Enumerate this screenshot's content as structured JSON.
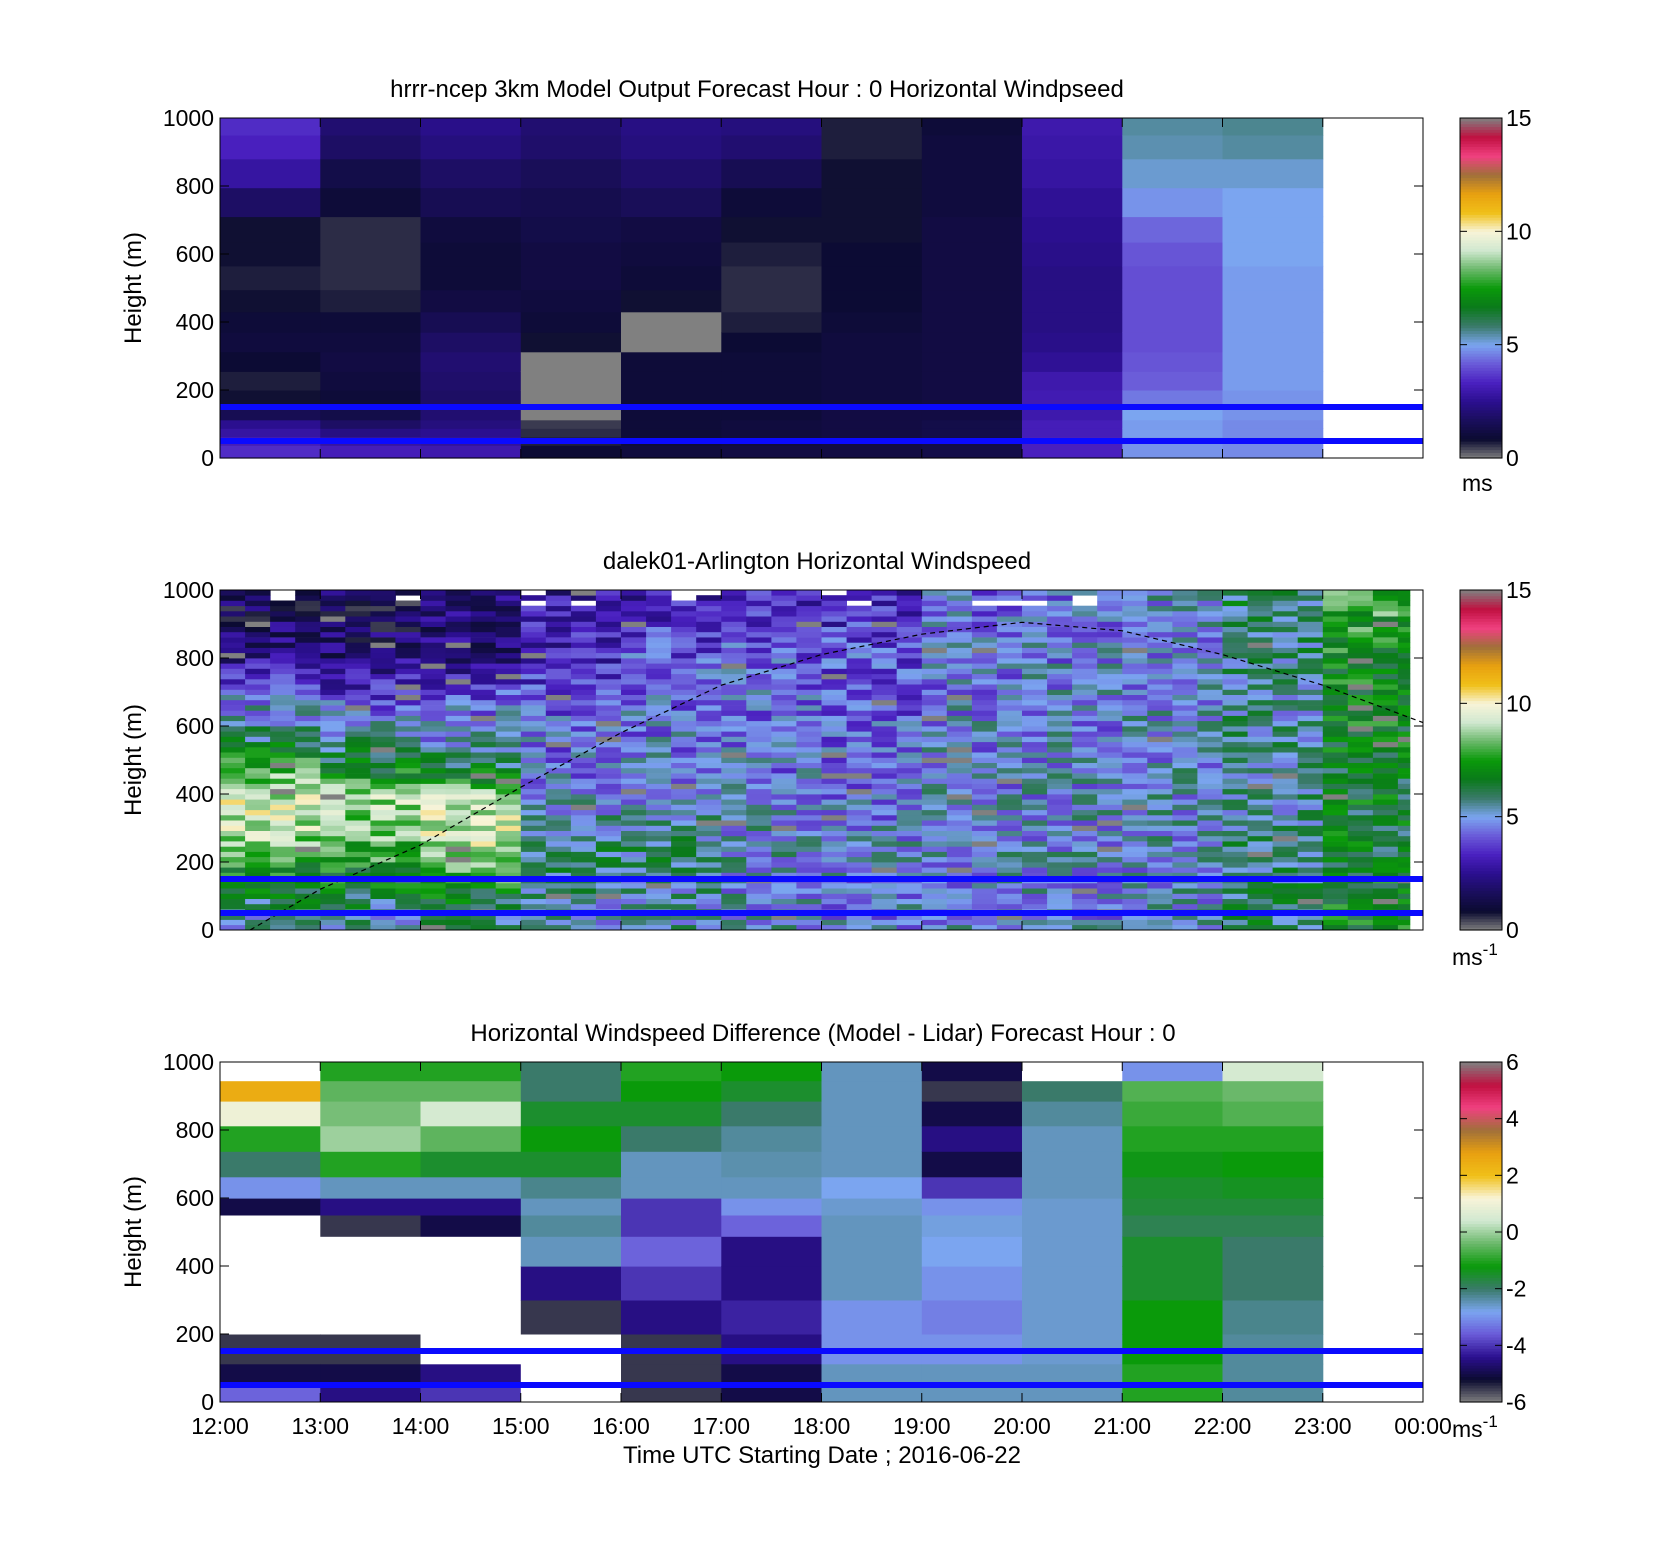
{
  "colormaps": {
    "speed": [
      "#808080",
      "#0b0b30",
      "#1a0e5c",
      "#2b0f8f",
      "#4a20c0",
      "#6a5ad8",
      "#7ba5f0",
      "#3a7a6a",
      "#0a7a1a",
      "#0a9a0a",
      "#6ab86a",
      "#d0e8d0",
      "#f8f4d8",
      "#f0c018",
      "#e8a010",
      "#a0703a",
      "#f04080",
      "#c01040",
      "#808080"
    ],
    "diff": [
      "#808080",
      "#0b0b30",
      "#2b0f8f",
      "#6a5ad8",
      "#7ba5f0",
      "#3a7a6a",
      "#0a9a0a",
      "#6ab86a",
      "#d0e8d0",
      "#f8f4d8",
      "#f0c018",
      "#e8a010",
      "#a0703a",
      "#f04080",
      "#c01040",
      "#808080"
    ]
  },
  "reference_lines": {
    "color": "#0a0aff",
    "heights_m": [
      150,
      50
    ]
  },
  "panels": [
    {
      "id": "model",
      "title": "hrrr-ncep 3km Model Output   Forecast Hour : 0 Horizontal Windpseed",
      "ylabel": "Height (m)",
      "colorbar": {
        "min": 0,
        "max": 15,
        "ticks": [
          "0",
          "5",
          "10",
          "15"
        ],
        "unit": "ms",
        "sup": ""
      }
    },
    {
      "id": "lidar",
      "title": "dalek01-Arlington  Horizontal Windspeed",
      "ylabel": "Height (m)",
      "colorbar": {
        "min": 0,
        "max": 15,
        "ticks": [
          "0",
          "5",
          "10",
          "15"
        ],
        "unit": "ms",
        "sup": "-1"
      }
    },
    {
      "id": "diff",
      "title": "Horizontal Windspeed Difference (Model - Lidar) Forecast Hour : 0",
      "ylabel": "Height (m)",
      "colorbar": {
        "min": -6,
        "max": 6,
        "ticks": [
          "-6",
          "-4",
          "-2",
          "0",
          "2",
          "4",
          "6"
        ],
        "unit": "ms",
        "sup": "-1"
      }
    }
  ],
  "x_axis": {
    "label": "Time UTC  Starting Date ; 2016-06-22",
    "ticks": [
      "12:00",
      "13:00",
      "14:00",
      "15:00",
      "16:00",
      "17:00",
      "18:00",
      "19:00",
      "20:00",
      "21:00",
      "22:00",
      "23:00",
      "00:00"
    ]
  },
  "chart_data": [
    {
      "type": "heatmap",
      "title": "hrrr-ncep 3km Model Output   Forecast Hour : 0 Horizontal Windpseed",
      "xlabel": "",
      "ylabel": "Height (m)",
      "ylim": [
        0,
        1000
      ],
      "x_range_hours_utc": [
        12,
        24
      ],
      "y_levels_m": [
        25,
        50,
        75,
        100,
        125,
        175,
        225,
        285,
        340,
        400,
        460,
        530,
        600,
        670,
        750,
        840,
        920,
        980
      ],
      "columns": [
        {
          "hour": "12:00",
          "values": [
            3.5,
            3.2,
            2.8,
            2.5,
            1.5,
            0.8,
            0.7,
            0.9,
            1.1,
            1.0,
            0.8,
            0.7,
            0.8,
            0.8,
            1.8,
            2.8,
            3.3,
            3.5
          ]
        },
        {
          "hour": "13:00",
          "values": [
            3.2,
            2.8,
            2.3,
            1.8,
            1.3,
            1.0,
            1.1,
            1.2,
            1.1,
            1.0,
            0.7,
            0.6,
            0.6,
            0.6,
            1.0,
            1.3,
            1.8,
            2.0
          ]
        },
        {
          "hour": "14:00",
          "values": [
            3.0,
            2.7,
            2.5,
            2.2,
            2.0,
            1.8,
            1.9,
            2.0,
            1.8,
            1.5,
            1.2,
            1.0,
            1.0,
            1.1,
            1.5,
            1.8,
            2.2,
            2.4
          ]
        },
        {
          "hour": "15:00",
          "values": [
            0.9,
            0.7,
            0.6,
            0.5,
            0.0,
            0.0,
            0.0,
            0.0,
            0.8,
            1.0,
            1.1,
            1.2,
            1.2,
            1.3,
            1.4,
            1.6,
            1.9,
            2.0
          ]
        },
        {
          "hour": "16:00",
          "values": [
            1.1,
            1.0,
            1.0,
            1.0,
            1.0,
            1.0,
            1.0,
            1.0,
            0.0,
            0.0,
            0.8,
            1.0,
            1.1,
            1.2,
            1.6,
            1.9,
            2.2,
            2.3
          ]
        },
        {
          "hour": "17:00",
          "values": [
            1.2,
            1.1,
            1.1,
            1.1,
            1.0,
            1.0,
            1.0,
            1.0,
            0.9,
            0.7,
            0.6,
            0.6,
            0.7,
            0.8,
            1.0,
            1.5,
            2.0,
            2.2
          ]
        },
        {
          "hour": "18:00",
          "values": [
            1.2,
            1.2,
            1.2,
            1.2,
            1.2,
            1.1,
            1.1,
            1.1,
            1.1,
            1.0,
            0.9,
            0.9,
            0.9,
            0.8,
            0.8,
            0.8,
            0.7,
            0.7
          ]
        },
        {
          "hour": "19:00",
          "values": [
            1.3,
            1.3,
            1.3,
            1.3,
            1.2,
            1.2,
            1.2,
            1.2,
            1.2,
            1.2,
            1.2,
            1.2,
            1.2,
            1.2,
            1.1,
            1.1,
            1.1,
            1.0
          ]
        },
        {
          "hour": "20:00",
          "values": [
            3.3,
            3.3,
            3.2,
            3.2,
            3.0,
            3.1,
            3.0,
            2.6,
            2.4,
            2.3,
            2.3,
            2.3,
            2.4,
            2.5,
            2.6,
            2.8,
            2.9,
            3.0
          ]
        },
        {
          "hour": "21:00",
          "values": [
            4.8,
            4.8,
            4.9,
            4.9,
            5.0,
            4.5,
            4.2,
            4.1,
            4.0,
            4.0,
            4.0,
            4.0,
            4.1,
            4.3,
            4.8,
            5.2,
            5.4,
            5.5
          ]
        },
        {
          "hour": "22:00",
          "values": [
            4.7,
            4.7,
            4.7,
            4.7,
            4.8,
            4.8,
            4.9,
            4.9,
            4.9,
            4.9,
            4.9,
            4.9,
            5.0,
            5.0,
            5.0,
            5.2,
            5.5,
            5.6
          ]
        }
      ]
    },
    {
      "type": "heatmap",
      "title": "dalek01-Arlington  Horizontal Windspeed",
      "xlabel": "",
      "ylabel": "Height (m)",
      "ylim": [
        0,
        1000
      ],
      "x_range_hours_utc": [
        12,
        24
      ],
      "data_note_series": "Boundary-layer height (dashed)",
      "columns_profile": [
        {
          "hour": "12:00",
          "values": [
            5.5,
            6.5,
            7.5,
            9.0,
            9.5,
            8.0,
            6.0,
            5.0,
            3.5,
            2.2,
            1.8,
            1.5
          ]
        },
        {
          "hour": "13:00",
          "values": [
            5.5,
            6.5,
            7.5,
            8.5,
            9.0,
            7.0,
            5.5,
            4.5,
            3.0,
            2.0,
            1.6,
            1.5
          ]
        },
        {
          "hour": "14:00",
          "values": [
            5.5,
            7.0,
            8.5,
            9.5,
            9.0,
            6.5,
            5.0,
            4.5,
            3.2,
            2.2,
            1.9,
            2.0
          ]
        },
        {
          "hour": "15:00",
          "values": [
            5.0,
            5.5,
            6.0,
            5.5,
            5.0,
            4.6,
            4.5,
            4.2,
            3.6,
            3.2,
            3.0,
            2.8
          ]
        },
        {
          "hour": "16:00",
          "values": [
            5.2,
            5.5,
            5.8,
            5.5,
            5.0,
            4.8,
            4.6,
            4.5,
            4.3,
            4.0,
            3.5,
            3.0
          ]
        },
        {
          "hour": "17:00",
          "values": [
            5.0,
            5.0,
            5.2,
            5.0,
            4.8,
            4.6,
            4.5,
            4.5,
            4.4,
            4.2,
            3.8,
            3.2
          ]
        },
        {
          "hour": "18:00",
          "values": [
            4.8,
            4.8,
            5.0,
            4.8,
            4.6,
            4.4,
            4.2,
            4.2,
            4.0,
            4.0,
            3.5,
            3.3
          ]
        },
        {
          "hour": "19:00",
          "values": [
            4.8,
            4.9,
            5.0,
            5.0,
            4.9,
            4.8,
            4.8,
            4.7,
            4.6,
            4.6,
            4.5,
            4.4
          ]
        },
        {
          "hour": "20:00",
          "values": [
            4.8,
            4.9,
            5.0,
            5.0,
            4.9,
            4.9,
            4.8,
            4.8,
            4.8,
            4.7,
            4.5,
            4.3
          ]
        },
        {
          "hour": "21:00",
          "values": [
            5.0,
            5.0,
            5.0,
            5.0,
            5.0,
            5.0,
            5.0,
            4.9,
            4.9,
            4.8,
            4.8,
            5.0
          ]
        },
        {
          "hour": "22:00",
          "values": [
            6.0,
            6.0,
            5.8,
            5.6,
            5.5,
            5.5,
            5.5,
            5.4,
            5.5,
            5.6,
            5.8,
            6.0
          ]
        },
        {
          "hour": "23:00",
          "values": [
            7.0,
            6.8,
            6.6,
            6.5,
            6.6,
            6.7,
            6.8,
            6.9,
            7.0,
            7.2,
            7.5,
            8.0
          ]
        }
      ],
      "profile_heights_m": [
        40,
        120,
        200,
        290,
        380,
        470,
        560,
        650,
        740,
        820,
        900,
        970
      ],
      "boundary_layer_height_m": [
        [
          12.3,
          0
        ],
        [
          13.0,
          120
        ],
        [
          14.0,
          250
        ],
        [
          15.0,
          420
        ],
        [
          16.0,
          580
        ],
        [
          17.0,
          720
        ],
        [
          18.0,
          810
        ],
        [
          19.0,
          870
        ],
        [
          20.0,
          905
        ],
        [
          21.0,
          880
        ],
        [
          22.0,
          810
        ],
        [
          23.0,
          720
        ],
        [
          24.0,
          610
        ]
      ]
    },
    {
      "type": "heatmap",
      "title": "Horizontal Windspeed Difference (Model - Lidar) Forecast Hour : 0",
      "xlabel": "Time UTC  Starting Date ; 2016-06-22",
      "ylabel": "Height (m)",
      "ylim": [
        0,
        1000
      ],
      "x_range_hours_utc": [
        12,
        24
      ],
      "y_levels_m": [
        25,
        75,
        150,
        250,
        350,
        450,
        525,
        575,
        625,
        700,
        775,
        850,
        920,
        970
      ],
      "columns": [
        {
          "hour": "12:00",
          "values": [
            -3.5,
            -5.0,
            -5.5,
            null,
            null,
            null,
            null,
            -5.0,
            -3.0,
            -2.0,
            -1.0,
            1.0,
            2.5,
            null
          ]
        },
        {
          "hour": "13:00",
          "values": [
            -4.5,
            -5.0,
            -5.5,
            null,
            null,
            null,
            -5.5,
            -4.5,
            -2.5,
            -1.0,
            0.0,
            -0.3,
            -0.5,
            -1.0
          ]
        },
        {
          "hour": "14:00",
          "values": [
            -4.0,
            -4.5,
            null,
            null,
            null,
            null,
            -5.0,
            -4.5,
            -2.5,
            -1.5,
            -0.5,
            0.5,
            -0.5,
            -1.0
          ]
        },
        {
          "hour": "15:00",
          "values": [
            null,
            null,
            null,
            -5.5,
            -4.5,
            -2.5,
            -2.3,
            -2.5,
            -2.2,
            -1.5,
            -1.2,
            -1.5,
            -2.0,
            -2.0
          ]
        },
        {
          "hour": "16:00",
          "values": [
            -5.5,
            -5.5,
            -5.5,
            -4.5,
            -4.0,
            -3.5,
            -4.0,
            -4.0,
            -2.5,
            -2.5,
            -2.0,
            -1.5,
            -1.2,
            -1.0
          ]
        },
        {
          "hour": "17:00",
          "values": [
            -5.0,
            -5.0,
            -4.5,
            -4.2,
            -4.5,
            -4.5,
            -3.5,
            -3.0,
            -2.5,
            -2.4,
            -2.3,
            -2.0,
            -1.5,
            -1.2
          ]
        },
        {
          "hour": "18:00",
          "values": [
            -2.5,
            -2.5,
            -3.0,
            -3.0,
            -2.5,
            -2.5,
            -2.5,
            -2.6,
            -2.8,
            -2.5,
            -2.5,
            -2.5,
            -2.5,
            -2.5
          ]
        },
        {
          "hour": "19:00",
          "values": [
            -2.5,
            -2.5,
            -3.0,
            -3.2,
            -3.0,
            -2.8,
            -2.7,
            -3.0,
            -4.0,
            -5.0,
            -4.5,
            -5.0,
            -5.5,
            -5.0
          ]
        },
        {
          "hour": "20:00",
          "values": [
            -2.5,
            -2.5,
            -2.6,
            -2.6,
            -2.6,
            -2.6,
            -2.6,
            -2.6,
            -2.5,
            -2.5,
            -2.5,
            -2.3,
            -2.0,
            null
          ]
        },
        {
          "hour": "21:00",
          "values": [
            -1.0,
            -1.0,
            -1.2,
            -1.2,
            -1.5,
            -1.5,
            -1.8,
            -1.6,
            -1.5,
            -1.3,
            -1.0,
            -0.8,
            -0.6,
            -3.0
          ]
        },
        {
          "hour": "22:00",
          "values": [
            -2.3,
            -2.3,
            -2.3,
            -2.2,
            -2.0,
            -2.0,
            -1.8,
            -1.6,
            -1.4,
            -1.2,
            -1.0,
            -0.6,
            -0.4,
            0.5
          ]
        }
      ]
    }
  ]
}
